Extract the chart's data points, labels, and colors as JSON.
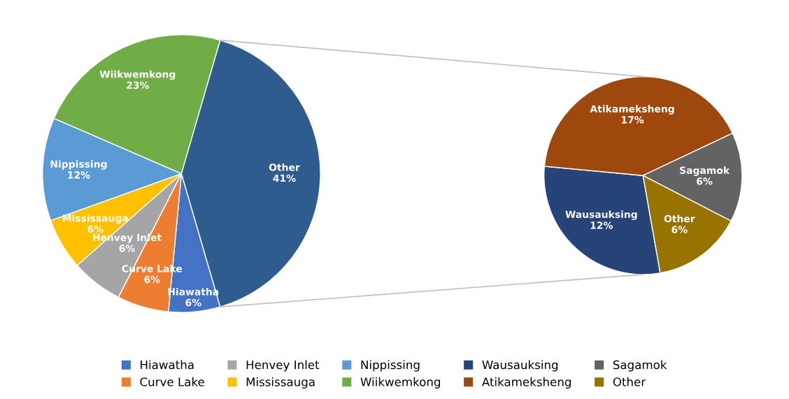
{
  "chart_data": [
    {
      "type": "pie",
      "categories": [
        "Hiawatha",
        "Curve Lake",
        "Henvey Inlet",
        "Mississauga",
        "Nippissing",
        "Wiikwemkong",
        "Other"
      ],
      "values": [
        6,
        6,
        6,
        6,
        12,
        23,
        41
      ],
      "value_labels": [
        "6%",
        "6%",
        "6%",
        "6%",
        "12%",
        "23%",
        "41%"
      ],
      "colors": [
        "#4472c4",
        "#ed7d31",
        "#a5a5a5",
        "#ffc000",
        "#5b9bd5",
        "#70ad47",
        "#2f5c8f"
      ],
      "legend": "bottom"
    },
    {
      "type": "pie",
      "categories": [
        "Wausauksing",
        "Atikameksheng",
        "Sagamok",
        "Other"
      ],
      "values": [
        12,
        17,
        6,
        6
      ],
      "value_labels": [
        "12%",
        "17%",
        "6%",
        "6%"
      ],
      "colors": [
        "#264478",
        "#9e480e",
        "#636363",
        "#997300"
      ],
      "legend": "bottom"
    }
  ]
}
